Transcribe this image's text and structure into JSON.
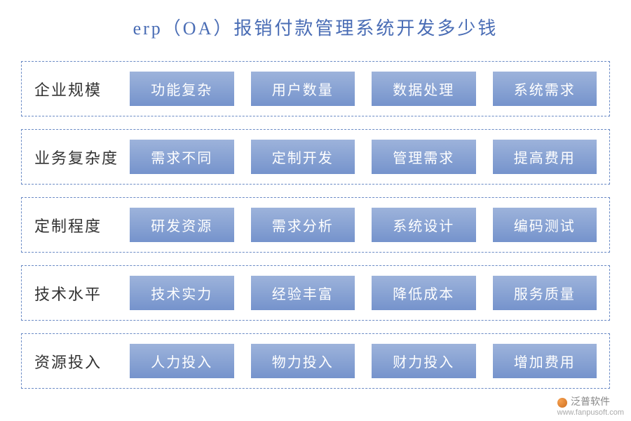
{
  "title": "erp（OA）报销付款管理系统开发多少钱",
  "title_color": "#4a6db5",
  "title_fontsize": 26,
  "background_color": "#ffffff",
  "row_border_color": "#6a8ac5",
  "row_border_style": "dashed",
  "label_color": "#333333",
  "label_fontsize": 22,
  "tag_gradient_top": "#9db3db",
  "tag_gradient_bottom": "#7593cc",
  "tag_text_color": "#ffffff",
  "tag_fontsize": 20,
  "rows": [
    {
      "label": "企业规模",
      "tags": [
        "功能复杂",
        "用户数量",
        "数据处理",
        "系统需求"
      ]
    },
    {
      "label": "业务复杂度",
      "tags": [
        "需求不同",
        "定制开发",
        "管理需求",
        "提高费用"
      ]
    },
    {
      "label": "定制程度",
      "tags": [
        "研发资源",
        "需求分析",
        "系统设计",
        "编码测试"
      ]
    },
    {
      "label": "技术水平",
      "tags": [
        "技术实力",
        "经验丰富",
        "降低成本",
        "服务质量"
      ]
    },
    {
      "label": "资源投入",
      "tags": [
        "人力投入",
        "物力投入",
        "财力投入",
        "增加费用"
      ]
    }
  ],
  "watermark": {
    "brand": "泛普软件",
    "url": "www.fanpusoft.com"
  }
}
